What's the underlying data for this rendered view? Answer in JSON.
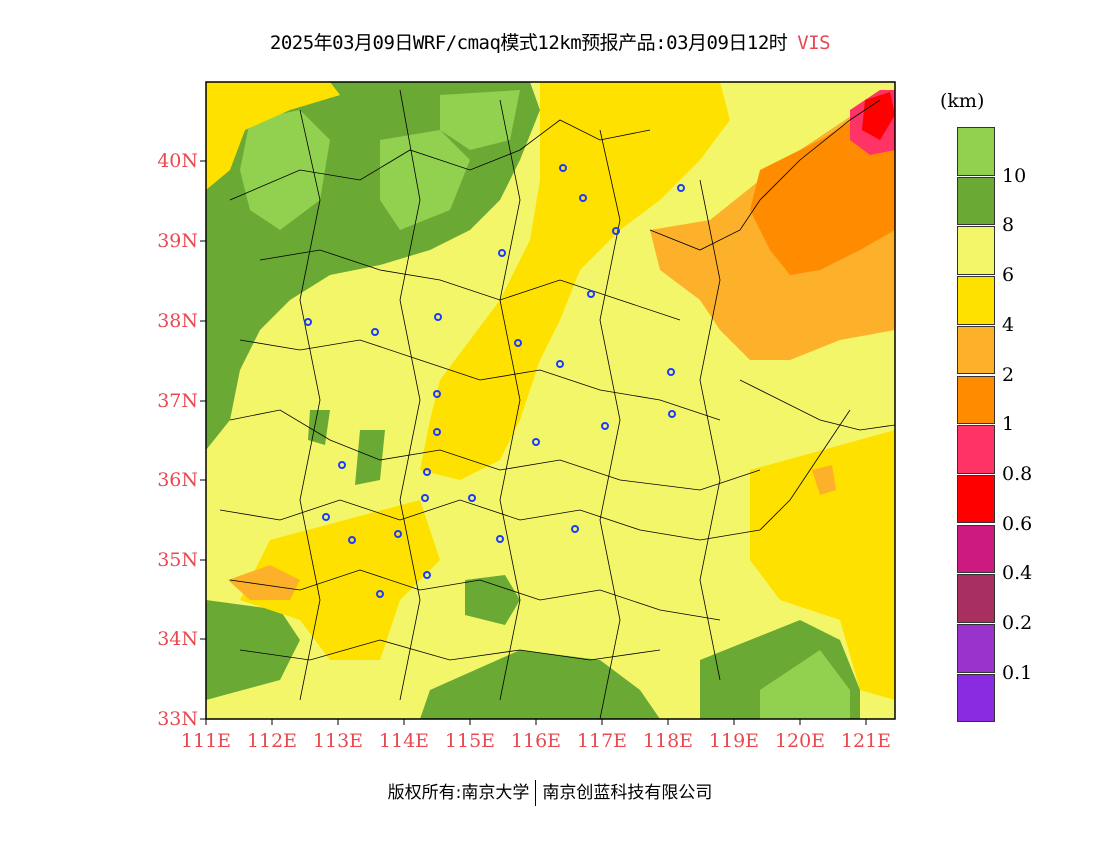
{
  "title": {
    "main": "2025年03月09日WRF/cmaq模式12km预报产品:03月09日12时",
    "variable": "VIS"
  },
  "unit": "(km)",
  "y_axis": [
    "40N",
    "39N",
    "38N",
    "37N",
    "36N",
    "35N",
    "34N",
    "33N"
  ],
  "x_axis": [
    "111E",
    "112E",
    "113E",
    "114E",
    "115E",
    "116E",
    "117E",
    "118E",
    "119E",
    "120E",
    "121E"
  ],
  "legend": {
    "colors": [
      "#92d050",
      "#6aaa34",
      "#f4f66a",
      "#ffe100",
      "#fdb02a",
      "#ff8c00",
      "#ff3366",
      "#ff0000",
      "#cc1a80",
      "#a83060",
      "#9933cc",
      "#8a2be2"
    ],
    "labels": [
      "10",
      "8",
      "6",
      "4",
      "2",
      "1",
      "0.8",
      "0.6",
      "0.4",
      "0.2",
      "0.1"
    ]
  },
  "footer": {
    "left": "版权所有:南京大学",
    "right": "南京创蓝科技有限公司"
  },
  "colors": {
    "axis_label": "#e8484f",
    "station_marker": "#1a3cff"
  }
}
